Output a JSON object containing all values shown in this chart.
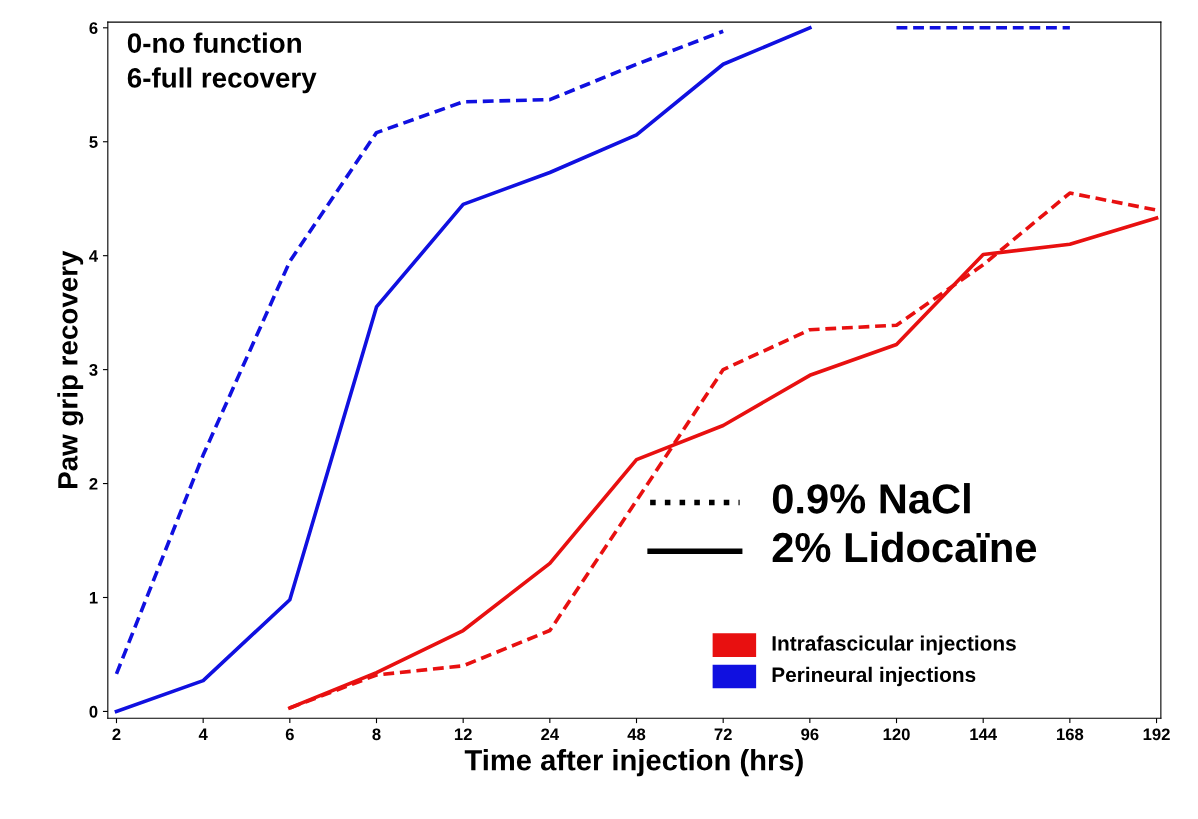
{
  "chart_data": {
    "type": "line",
    "xlabel": "Time after injection (hrs)",
    "ylabel": "Paw grip recovery",
    "annotations": [
      "0-no function",
      "6-full recovery",
      "0.9% NaCl",
      "2% Lidocaïne",
      "Intrafascicular injections",
      "Perineural injections"
    ],
    "categories": [
      "2",
      "4",
      "6",
      "8",
      "12",
      "24",
      "48",
      "72",
      "96",
      "120",
      "144",
      "168",
      "192"
    ],
    "ylim": [
      -0.06,
      6.05
    ],
    "yticks": [
      0,
      1,
      2,
      3,
      4,
      5,
      6
    ],
    "grid": false,
    "marker": "none",
    "series": [
      {
        "color": "#1010e0",
        "line_style": "dashed",
        "values": [
          0.33,
          2.25,
          3.95,
          5.08,
          5.35,
          5.37,
          5.68,
          5.97,
          null,
          6,
          6,
          6,
          null
        ]
      },
      {
        "color": "#1010e0",
        "line_style": "solid",
        "values": [
          0,
          0.27,
          0.98,
          3.55,
          4.45,
          4.73,
          5.06,
          5.68,
          6,
          null,
          null,
          null,
          null
        ]
      },
      {
        "color": "#e81010",
        "line_style": "dashed",
        "values": [
          null,
          null,
          0.03,
          0.32,
          0.4,
          0.71,
          1.85,
          3.0,
          3.35,
          3.39,
          3.92,
          4.55,
          4.4
        ]
      },
      {
        "color": "#e81010",
        "line_style": "solid",
        "values": [
          null,
          null,
          0.03,
          0.34,
          0.71,
          1.3,
          2.21,
          2.51,
          2.95,
          3.22,
          4.01,
          4.1,
          4.33
        ]
      }
    ]
  }
}
